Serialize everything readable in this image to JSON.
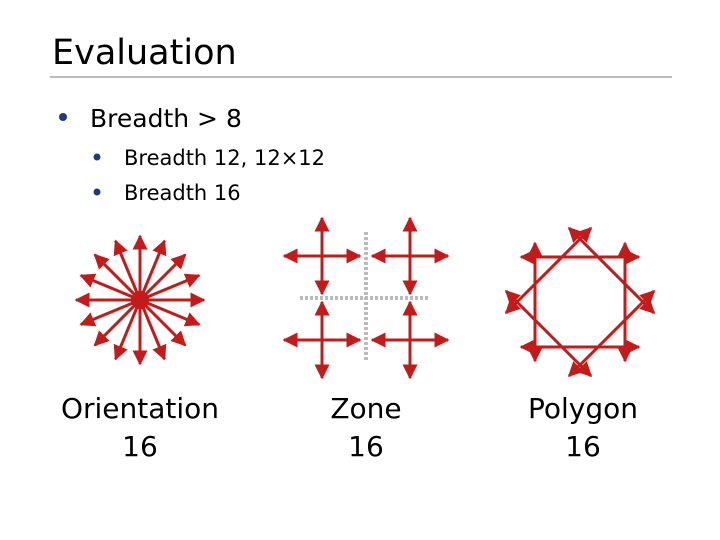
{
  "header": {
    "title": "Evaluation"
  },
  "bullets": [
    {
      "text": "Breadth > 8",
      "sub": [
        "Breadth 12, 12×12",
        "Breadth 16"
      ]
    }
  ],
  "figures": [
    {
      "caption": [
        "Orientation",
        "16"
      ]
    },
    {
      "caption": [
        "Zone",
        "16"
      ]
    },
    {
      "caption": [
        "Polygon",
        "16"
      ]
    }
  ]
}
